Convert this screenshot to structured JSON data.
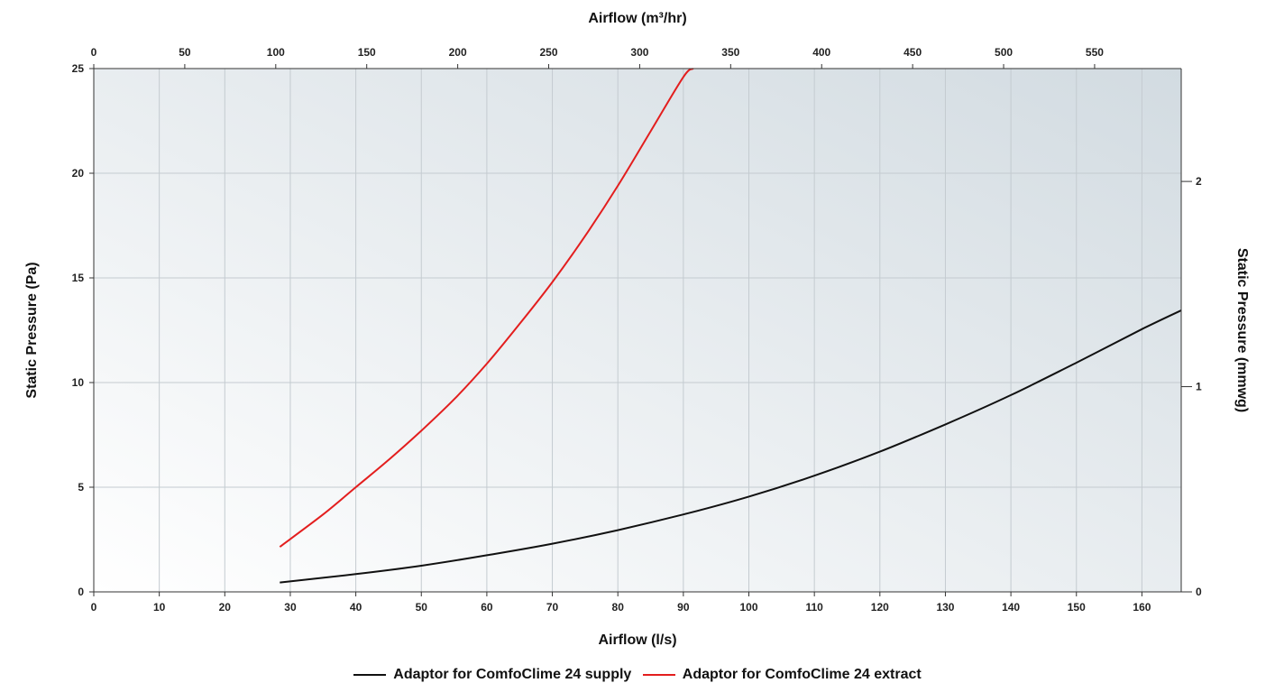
{
  "chart_data": {
    "type": "line",
    "xlabel": "Airflow (l/s)",
    "x2label": "Airflow (m³/hr)",
    "ylabel": "Static Pressure (Pa)",
    "y2label": "Static Pressure (mmwg)",
    "xlim": [
      0,
      166
    ],
    "ylim": [
      0,
      25
    ],
    "x2lim": [
      0,
      597.6
    ],
    "y2lim": [
      0,
      2.55
    ],
    "x_ticks": [
      "0",
      "10",
      "20",
      "30",
      "40",
      "50",
      "60",
      "70",
      "80",
      "90",
      "100",
      "110",
      "120",
      "130",
      "140",
      "150",
      "160"
    ],
    "x2_ticks": [
      "0",
      "50",
      "100",
      "150",
      "200",
      "250",
      "300",
      "350",
      "400",
      "450",
      "500",
      "550"
    ],
    "y_ticks": [
      "0",
      "5",
      "10",
      "15",
      "20",
      "25"
    ],
    "y2_ticks": [
      "0",
      "1",
      "2"
    ],
    "grid": true,
    "legend_position": "bottom-center",
    "series": [
      {
        "name": "Adaptor for ComfoClime 24 supply",
        "color": "#111111",
        "x": [
          28.4,
          40,
          50,
          60,
          70,
          80,
          90,
          100,
          110,
          120,
          130,
          140,
          150,
          160,
          166
        ],
        "y": [
          0.45,
          0.85,
          1.25,
          1.75,
          2.3,
          2.95,
          3.7,
          4.55,
          5.55,
          6.7,
          8.0,
          9.4,
          10.95,
          12.55,
          13.45
        ]
      },
      {
        "name": "Adaptor for ComfoClime 24 extract",
        "color": "#e31e1e",
        "x": [
          28.4,
          35,
          40,
          45,
          50,
          55,
          60,
          65,
          70,
          75,
          80,
          85,
          90,
          91.5
        ],
        "y": [
          2.15,
          3.7,
          5.0,
          6.3,
          7.7,
          9.2,
          10.9,
          12.8,
          14.8,
          17.0,
          19.4,
          22.0,
          24.6,
          25.0
        ]
      }
    ]
  }
}
